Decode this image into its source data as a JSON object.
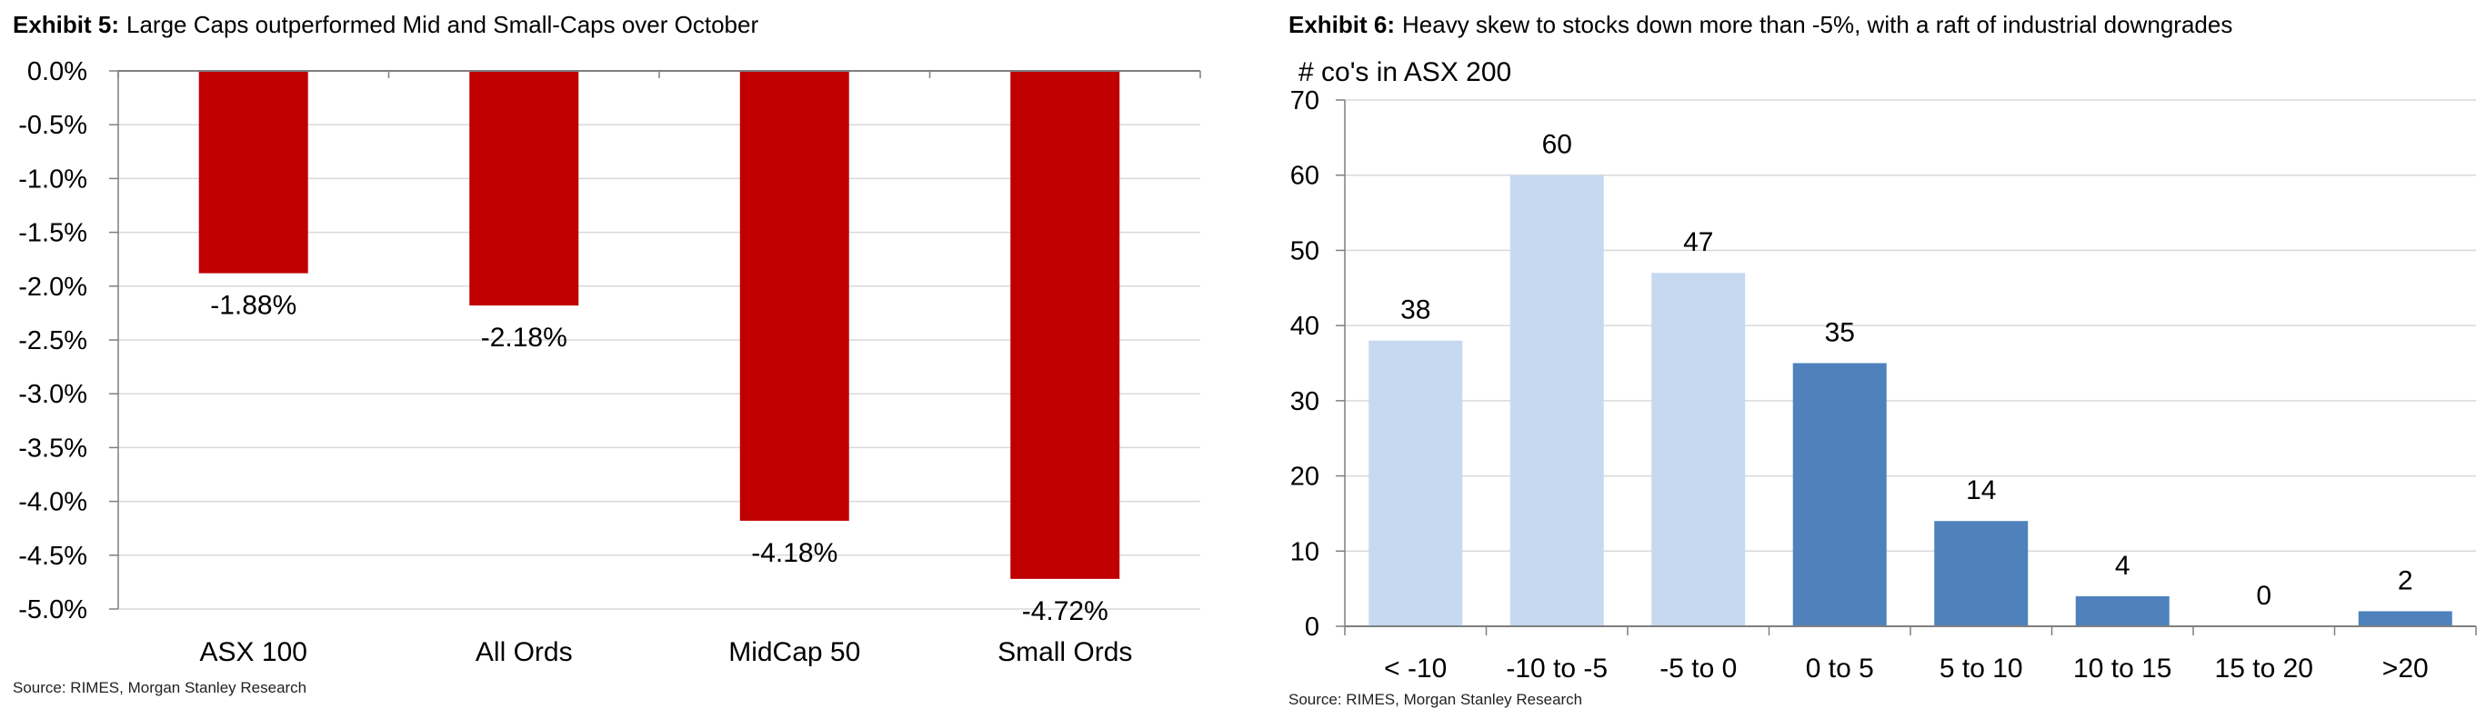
{
  "left": {
    "exhibit_label": "Exhibit 5:",
    "title_text": "Large Caps outperformed Mid and Small-Caps over October",
    "source": "Source: RIMES, Morgan Stanley Research"
  },
  "right": {
    "exhibit_label": "Exhibit 6:",
    "title_text": "Heavy skew to stocks down more than -5%, with a raft of industrial downgrades",
    "source": "Source: RIMES, Morgan Stanley Research"
  },
  "chart_data": [
    {
      "type": "bar",
      "title": "Large Caps outperformed Mid and Small-Caps over October",
      "categories": [
        "ASX 100",
        "All Ords",
        "MidCap 50",
        "Small Ords"
      ],
      "values": [
        -1.88,
        -2.18,
        -4.18,
        -4.72
      ],
      "data_labels": [
        "-1.88%",
        "-2.18%",
        "-4.18%",
        "-4.72%"
      ],
      "ylim": [
        -5.0,
        0.0
      ],
      "yticks": [
        0.0,
        -0.5,
        -1.0,
        -1.5,
        -2.0,
        -2.5,
        -3.0,
        -3.5,
        -4.0,
        -4.5,
        -5.0
      ],
      "ytick_labels": [
        "0.0%",
        "-0.5%",
        "-1.0%",
        "-1.5%",
        "-2.0%",
        "-2.5%",
        "-3.0%",
        "-3.5%",
        "-4.0%",
        "-4.5%",
        "-5.0%"
      ],
      "xlabel": "",
      "ylabel": "",
      "grid": true,
      "colors": [
        "#c00000",
        "#c00000",
        "#c00000",
        "#c00000"
      ]
    },
    {
      "type": "bar",
      "title": "Heavy skew to stocks down more than -5%, with a raft of industrial downgrades",
      "categories": [
        "< -10",
        "-10 to -5",
        "-5 to 0",
        "0 to 5",
        "5 to 10",
        "10 to 15",
        "15 to 20",
        ">20"
      ],
      "values": [
        38,
        60,
        47,
        35,
        14,
        4,
        0,
        2
      ],
      "data_labels": [
        "38",
        "60",
        "47",
        "35",
        "14",
        "4",
        "0",
        "2"
      ],
      "ylim": [
        0,
        70
      ],
      "yticks": [
        0,
        10,
        20,
        30,
        40,
        50,
        60,
        70
      ],
      "ytick_labels": [
        "0",
        "10",
        "20",
        "30",
        "40",
        "50",
        "60",
        "70"
      ],
      "xlabel": "",
      "ylabel": "# co's in ASX 200",
      "grid": true,
      "colors": [
        "#c6d9f1",
        "#c6d9f1",
        "#c6d9f1",
        "#4f81bd",
        "#4f81bd",
        "#4f81bd",
        "#4f81bd",
        "#4f81bd"
      ]
    }
  ]
}
